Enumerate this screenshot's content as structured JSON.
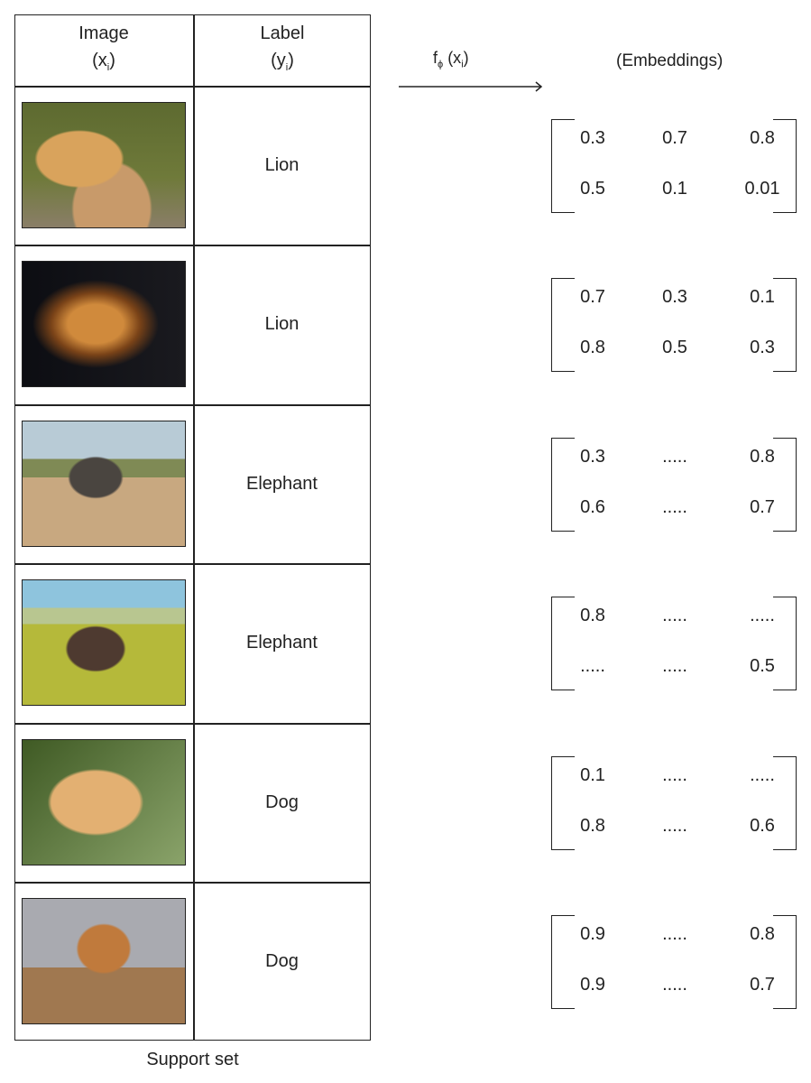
{
  "table": {
    "header_image": "Image",
    "header_image_var": "(x",
    "header_image_sub": "i",
    "header_image_close": ")",
    "header_label": "Label",
    "header_label_var": "(y",
    "header_label_sub": "i",
    "header_label_close": ")",
    "caption": "Support set",
    "rows": [
      {
        "label": "Lion",
        "image": "lion-lying"
      },
      {
        "label": "Lion",
        "image": "lion-portrait"
      },
      {
        "label": "Elephant",
        "image": "elephant-savanna"
      },
      {
        "label": "Elephant",
        "image": "elephant-grassland"
      },
      {
        "label": "Dog",
        "image": "labrador"
      },
      {
        "label": "Dog",
        "image": "puppy-in-box"
      }
    ]
  },
  "mapping": {
    "f": "f",
    "phi": "ϕ",
    "arg": " (x",
    "arg_sub": "i",
    "arg_close": ")",
    "embeddings_label": "(Embeddings)"
  },
  "embeddings": [
    [
      [
        "0.3",
        "0.7",
        "0.8"
      ],
      [
        "0.5",
        "0.1",
        "0.01"
      ]
    ],
    [
      [
        "0.7",
        "0.3",
        "0.1"
      ],
      [
        "0.8",
        "0.5",
        "0.3"
      ]
    ],
    [
      [
        "0.3",
        ".....",
        "0.8"
      ],
      [
        "0.6",
        ".....",
        "0.7"
      ]
    ],
    [
      [
        "0.8",
        ".....",
        "....."
      ],
      [
        ".....",
        ".....",
        "0.5"
      ]
    ],
    [
      [
        "0.1",
        ".....",
        "....."
      ],
      [
        "0.8",
        ".....",
        "0.6"
      ]
    ],
    [
      [
        "0.9",
        ".....",
        "0.8"
      ],
      [
        "0.9",
        ".....",
        "0.7"
      ]
    ]
  ]
}
